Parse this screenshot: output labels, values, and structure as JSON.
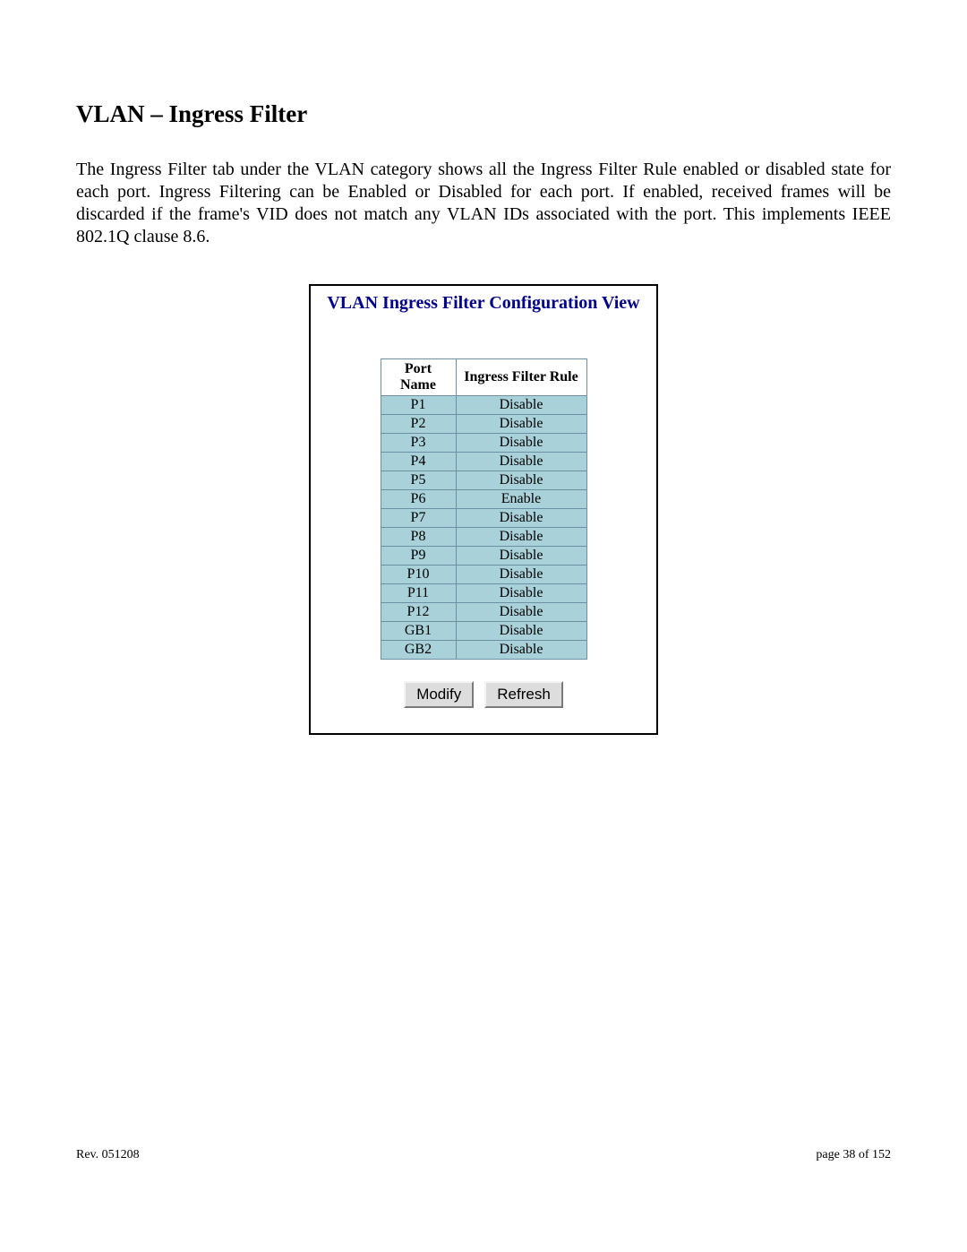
{
  "title": "VLAN – Ingress Filter",
  "intro": "The Ingress Filter tab under the VLAN category shows all the Ingress Filter Rule enabled or disabled state for each port. Ingress Filtering can be Enabled or Disabled for each port. If enabled, received frames will be discarded if the frame's VID does not match any VLAN IDs associated with the port. This implements IEEE 802.1Q clause 8.6.",
  "panel": {
    "title": "VLAN Ingress Filter Configuration View",
    "columns": {
      "port": "Port Name",
      "rule": "Ingress Filter Rule"
    },
    "rows": [
      {
        "port": "P1",
        "rule": "Disable"
      },
      {
        "port": "P2",
        "rule": "Disable"
      },
      {
        "port": "P3",
        "rule": "Disable"
      },
      {
        "port": "P4",
        "rule": "Disable"
      },
      {
        "port": "P5",
        "rule": "Disable"
      },
      {
        "port": "P6",
        "rule": "Enable"
      },
      {
        "port": "P7",
        "rule": "Disable"
      },
      {
        "port": "P8",
        "rule": "Disable"
      },
      {
        "port": "P9",
        "rule": "Disable"
      },
      {
        "port": "P10",
        "rule": "Disable"
      },
      {
        "port": "P11",
        "rule": "Disable"
      },
      {
        "port": "P12",
        "rule": "Disable"
      },
      {
        "port": "GB1",
        "rule": "Disable"
      },
      {
        "port": "GB2",
        "rule": "Disable"
      }
    ],
    "buttons": {
      "modify": "Modify",
      "refresh": "Refresh"
    },
    "colors": {
      "title_color": "#00008b",
      "cell_bg": "#a8d1d9",
      "cell_border": "#6d8fa3",
      "panel_border": "#000000",
      "btn_bg": "#dddddd"
    }
  },
  "footer": {
    "rev": "Rev.  051208",
    "page": "page 38 of 152"
  }
}
